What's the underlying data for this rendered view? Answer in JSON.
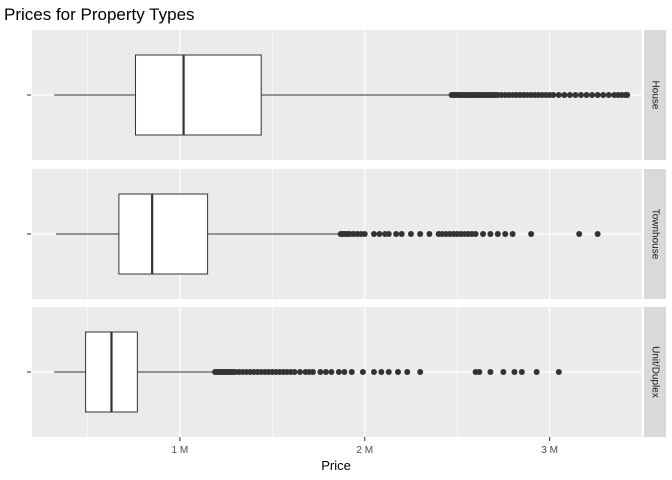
{
  "chart_data": {
    "type": "boxplot",
    "title": "Prices for Property Types",
    "xlabel": "Price",
    "ylabel": "",
    "xlim": [
      200000,
      3500000
    ],
    "x_ticks": [
      {
        "value": 1000000,
        "label": "1 M"
      },
      {
        "value": 2000000,
        "label": "2 M"
      },
      {
        "value": 3000000,
        "label": "3 M"
      }
    ],
    "grid": true,
    "facets": [
      {
        "name": "House",
        "whisker_low": 320000,
        "q1": 760000,
        "median": 1020000,
        "q3": 1440000,
        "whisker_high": 2460000,
        "outliers": [
          2470000,
          2480000,
          2490000,
          2500000,
          2510000,
          2520000,
          2530000,
          2540000,
          2550000,
          2560000,
          2570000,
          2580000,
          2590000,
          2600000,
          2610000,
          2620000,
          2630000,
          2640000,
          2650000,
          2660000,
          2670000,
          2680000,
          2690000,
          2700000,
          2710000,
          2720000,
          2740000,
          2760000,
          2780000,
          2800000,
          2820000,
          2840000,
          2860000,
          2880000,
          2900000,
          2920000,
          2940000,
          2960000,
          2980000,
          3000000,
          3020000,
          3050000,
          3080000,
          3110000,
          3140000,
          3170000,
          3200000,
          3230000,
          3260000,
          3290000,
          3320000,
          3350000,
          3370000,
          3390000,
          3410000,
          3420000
        ]
      },
      {
        "name": "Townhouse",
        "whisker_low": 330000,
        "q1": 670000,
        "median": 850000,
        "q3": 1150000,
        "whisker_high": 1860000,
        "outliers": [
          1870000,
          1880000,
          1890000,
          1900000,
          1910000,
          1920000,
          1940000,
          1960000,
          1980000,
          2000000,
          2050000,
          2080000,
          2110000,
          2130000,
          2170000,
          2200000,
          2250000,
          2300000,
          2350000,
          2400000,
          2420000,
          2440000,
          2460000,
          2480000,
          2500000,
          2520000,
          2540000,
          2560000,
          2580000,
          2600000,
          2640000,
          2680000,
          2720000,
          2760000,
          2800000,
          2900000,
          3160000,
          3260000
        ]
      },
      {
        "name": "Unit/Duplex",
        "whisker_low": 320000,
        "q1": 490000,
        "median": 630000,
        "q3": 770000,
        "whisker_high": 1180000,
        "outliers": [
          1190000,
          1200000,
          1210000,
          1220000,
          1230000,
          1240000,
          1250000,
          1260000,
          1270000,
          1280000,
          1290000,
          1300000,
          1320000,
          1340000,
          1360000,
          1380000,
          1400000,
          1420000,
          1440000,
          1460000,
          1480000,
          1500000,
          1520000,
          1540000,
          1560000,
          1580000,
          1600000,
          1620000,
          1650000,
          1680000,
          1700000,
          1720000,
          1760000,
          1790000,
          1820000,
          1860000,
          1890000,
          1930000,
          1990000,
          2050000,
          2090000,
          2130000,
          2180000,
          2230000,
          2300000,
          2600000,
          2620000,
          2680000,
          2750000,
          2810000,
          2850000,
          2930000,
          3050000
        ]
      }
    ]
  }
}
